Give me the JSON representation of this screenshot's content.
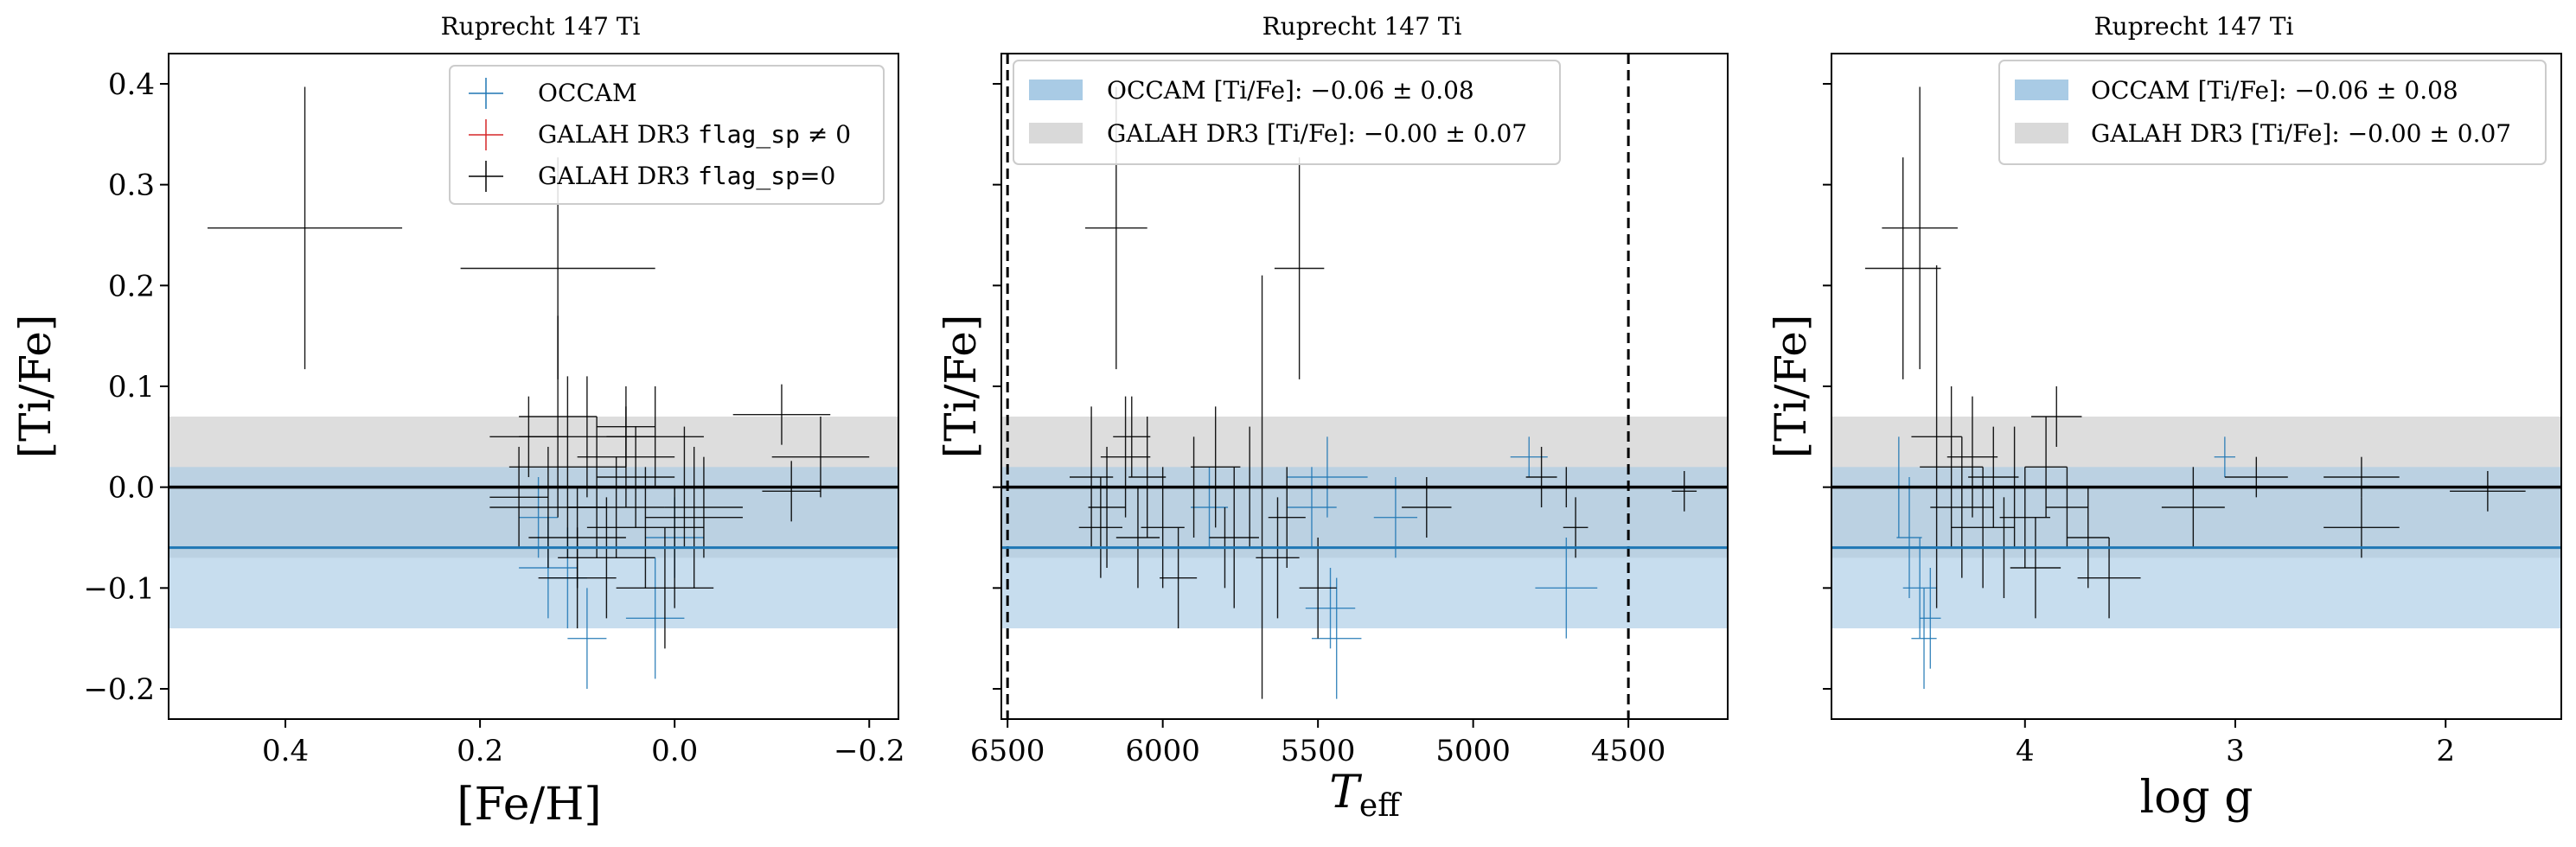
{
  "chart_data": [
    {
      "type": "scatter",
      "title": "Ruprecht 147 Ti",
      "xlabel": "[Fe/H]",
      "ylabel": "[Ti/Fe]",
      "xlim": [
        0.52,
        -0.23
      ],
      "ylim": [
        -0.23,
        0.43
      ],
      "xticks": [
        0.4,
        0.2,
        0.0,
        -0.2
      ],
      "xtick_labels": [
        "0.4",
        "0.2",
        "0.0",
        "−0.2"
      ],
      "yticks": [
        -0.2,
        -0.1,
        0.0,
        0.1,
        0.2,
        0.3,
        0.4
      ],
      "ytick_labels": [
        "−0.2",
        "−0.1",
        "0.0",
        "0.1",
        "0.2",
        "0.3",
        "0.4"
      ],
      "legend": {
        "placement": "top-right",
        "entries": [
          {
            "label": "OCCAM",
            "marker": "cross",
            "color": "#1f77b4"
          },
          {
            "label_prefix": "GALAH DR3 ",
            "label_code": "flag_sp",
            "label_suffix": " ≠ 0",
            "marker": "cross",
            "color": "#d62728"
          },
          {
            "label_prefix": "GALAH DR3 ",
            "label_code": "flag_sp",
            "label_suffix": "=0",
            "marker": "cross",
            "color": "#000000"
          }
        ]
      },
      "bands": [
        {
          "series": "GALAH DR3",
          "center": 0.0,
          "halfwidth": 0.07,
          "color": "#d9d9d9"
        },
        {
          "series": "OCCAM",
          "center": -0.06,
          "halfwidth": 0.08,
          "color": "#a9cbe5"
        }
      ],
      "series": [
        {
          "name": "OCCAM",
          "color": "#1f77b4",
          "points": [
            {
              "x": 0.14,
              "y": -0.03,
              "xerr": 0.02,
              "yerr": 0.04
            },
            {
              "x": 0.13,
              "y": -0.08,
              "xerr": 0.03,
              "yerr": 0.05
            },
            {
              "x": 0.11,
              "y": -0.09,
              "xerr": 0.02,
              "yerr": 0.05
            },
            {
              "x": 0.09,
              "y": -0.15,
              "xerr": 0.02,
              "yerr": 0.05
            },
            {
              "x": 0.02,
              "y": -0.13,
              "xerr": 0.03,
              "yerr": 0.06
            },
            {
              "x": 0.0,
              "y": -0.05,
              "xerr": 0.03,
              "yerr": 0.04
            }
          ]
        },
        {
          "name": "GALAH DR3 flag_sp=0",
          "color": "#000000",
          "points": [
            {
              "x": 0.38,
              "y": 0.257,
              "xerr": 0.1,
              "yerr": 0.14
            },
            {
              "x": 0.12,
              "y": 0.217,
              "xerr": 0.1,
              "yerr": 0.11
            },
            {
              "x": 0.12,
              "y": 0.07,
              "xerr": 0.04,
              "yerr": 0.1
            },
            {
              "x": 0.11,
              "y": 0.02,
              "xerr": 0.06,
              "yerr": 0.09
            },
            {
              "x": 0.09,
              "y": 0.05,
              "xerr": 0.07,
              "yerr": 0.06
            },
            {
              "x": 0.05,
              "y": 0.03,
              "xerr": 0.05,
              "yerr": 0.05
            },
            {
              "x": 0.15,
              "y": 0.05,
              "xerr": 0.04,
              "yerr": 0.04
            },
            {
              "x": 0.13,
              "y": -0.02,
              "xerr": 0.06,
              "yerr": 0.06
            },
            {
              "x": 0.1,
              "y": -0.05,
              "xerr": 0.05,
              "yerr": 0.05
            },
            {
              "x": 0.08,
              "y": 0.0,
              "xerr": 0.08,
              "yerr": 0.07
            },
            {
              "x": 0.06,
              "y": -0.02,
              "xerr": 0.05,
              "yerr": 0.05
            },
            {
              "x": 0.04,
              "y": 0.01,
              "xerr": 0.04,
              "yerr": 0.05
            },
            {
              "x": 0.03,
              "y": -0.04,
              "xerr": 0.06,
              "yerr": 0.06
            },
            {
              "x": 0.02,
              "y": 0.05,
              "xerr": 0.05,
              "yerr": 0.05
            },
            {
              "x": 0.0,
              "y": -0.06,
              "xerr": 0.06,
              "yerr": 0.06
            },
            {
              "x": -0.01,
              "y": 0.0,
              "xerr": 0.05,
              "yerr": 0.06
            },
            {
              "x": -0.02,
              "y": -0.03,
              "xerr": 0.05,
              "yerr": 0.07
            },
            {
              "x": 0.07,
              "y": -0.07,
              "xerr": 0.05,
              "yerr": 0.06
            },
            {
              "x": 0.1,
              "y": -0.09,
              "xerr": 0.04,
              "yerr": 0.05
            },
            {
              "x": 0.01,
              "y": -0.1,
              "xerr": 0.05,
              "yerr": 0.06
            },
            {
              "x": -0.03,
              "y": -0.02,
              "xerr": 0.04,
              "yerr": 0.05
            },
            {
              "x": 0.16,
              "y": -0.01,
              "xerr": 0.03,
              "yerr": 0.05
            },
            {
              "x": 0.05,
              "y": 0.06,
              "xerr": 0.03,
              "yerr": 0.04
            },
            {
              "x": -0.11,
              "y": 0.072,
              "xerr": 0.05,
              "yerr": 0.03
            },
            {
              "x": -0.15,
              "y": 0.03,
              "xerr": 0.05,
              "yerr": 0.04
            },
            {
              "x": -0.12,
              "y": -0.004,
              "xerr": 0.03,
              "yerr": 0.03
            }
          ]
        }
      ],
      "hlines": [
        {
          "y": 0.0,
          "color": "#000000"
        },
        {
          "y": -0.06,
          "color": "#1f77b4"
        }
      ]
    },
    {
      "type": "scatter",
      "title": "Ruprecht 147 Ti",
      "xlabel_main": "T",
      "xlabel_sub": "eff",
      "ylabel": "[Ti/Fe]",
      "xlim": [
        6520,
        4180
      ],
      "ylim": [
        -0.23,
        0.43
      ],
      "xticks": [
        6500,
        6000,
        5500,
        5000,
        4500
      ],
      "xtick_labels": [
        "6500",
        "6000",
        "5500",
        "5000",
        "4500"
      ],
      "yticks": [
        -0.2,
        -0.1,
        0.0,
        0.1,
        0.2,
        0.3,
        0.4
      ],
      "vlines": [
        {
          "x": 6500,
          "style": "dashed"
        },
        {
          "x": 4500,
          "style": "dashed"
        }
      ],
      "legend": {
        "placement": "top-left",
        "entries": [
          {
            "label_prefix": "OCCAM [Ti/Fe]: ",
            "label_value": "−0.06 ± 0.08",
            "color": "#a9cbe5"
          },
          {
            "label_prefix": "GALAH DR3 [Ti/Fe]: ",
            "label_value": "−0.00 ± 0.07",
            "color": "#d9d9d9"
          }
        ]
      },
      "bands": [
        {
          "series": "GALAH DR3",
          "center": 0.0,
          "halfwidth": 0.07,
          "color": "#d9d9d9"
        },
        {
          "series": "OCCAM",
          "center": -0.06,
          "halfwidth": 0.08,
          "color": "#a9cbe5"
        }
      ],
      "series": [
        {
          "name": "OCCAM",
          "color": "#1f77b4",
          "points": [
            {
              "x": 5850,
              "y": -0.02,
              "xerr": 60,
              "yerr": 0.04
            },
            {
              "x": 5520,
              "y": -0.02,
              "xerr": 80,
              "yerr": 0.04
            },
            {
              "x": 5460,
              "y": -0.12,
              "xerr": 80,
              "yerr": 0.04
            },
            {
              "x": 5440,
              "y": -0.15,
              "xerr": 80,
              "yerr": 0.06
            },
            {
              "x": 5470,
              "y": 0.01,
              "xerr": 130,
              "yerr": 0.04
            },
            {
              "x": 5250,
              "y": -0.03,
              "xerr": 70,
              "yerr": 0.04
            },
            {
              "x": 4820,
              "y": 0.03,
              "xerr": 60,
              "yerr": 0.02
            },
            {
              "x": 4700,
              "y": -0.1,
              "xerr": 100,
              "yerr": 0.05
            }
          ]
        },
        {
          "name": "GALAH DR3 flag_sp=0",
          "color": "#000000",
          "points": [
            {
              "x": 6150,
              "y": 0.257,
              "xerr": 100,
              "yerr": 0.14
            },
            {
              "x": 5560,
              "y": 0.217,
              "xerr": 80,
              "yerr": 0.11
            },
            {
              "x": 5680,
              "y": 0.0,
              "xerr": 60,
              "yerr": 0.21
            },
            {
              "x": 6230,
              "y": 0.01,
              "xerr": 70,
              "yerr": 0.07
            },
            {
              "x": 6180,
              "y": -0.02,
              "xerr": 60,
              "yerr": 0.06
            },
            {
              "x": 6120,
              "y": 0.03,
              "xerr": 80,
              "yerr": 0.06
            },
            {
              "x": 6080,
              "y": -0.05,
              "xerr": 70,
              "yerr": 0.05
            },
            {
              "x": 6050,
              "y": 0.01,
              "xerr": 60,
              "yerr": 0.06
            },
            {
              "x": 6000,
              "y": -0.04,
              "xerr": 70,
              "yerr": 0.06
            },
            {
              "x": 5950,
              "y": -0.09,
              "xerr": 60,
              "yerr": 0.05
            },
            {
              "x": 5900,
              "y": 0.0,
              "xerr": 60,
              "yerr": 0.05
            },
            {
              "x": 5830,
              "y": 0.02,
              "xerr": 80,
              "yerr": 0.06
            },
            {
              "x": 5770,
              "y": -0.05,
              "xerr": 80,
              "yerr": 0.07
            },
            {
              "x": 5720,
              "y": 0.0,
              "xerr": 70,
              "yerr": 0.06
            },
            {
              "x": 5630,
              "y": -0.07,
              "xerr": 70,
              "yerr": 0.06
            },
            {
              "x": 5600,
              "y": -0.03,
              "xerr": 60,
              "yerr": 0.05
            },
            {
              "x": 5500,
              "y": -0.1,
              "xerr": 60,
              "yerr": 0.05
            },
            {
              "x": 6200,
              "y": -0.04,
              "xerr": 70,
              "yerr": 0.05
            },
            {
              "x": 6100,
              "y": 0.05,
              "xerr": 60,
              "yerr": 0.04
            },
            {
              "x": 5800,
              "y": -0.06,
              "xerr": 70,
              "yerr": 0.04
            },
            {
              "x": 5150,
              "y": -0.02,
              "xerr": 80,
              "yerr": 0.03
            },
            {
              "x": 4780,
              "y": 0.01,
              "xerr": 50,
              "yerr": 0.03
            },
            {
              "x": 4700,
              "y": 0.0,
              "xerr": 50,
              "yerr": 0.02
            },
            {
              "x": 4670,
              "y": -0.04,
              "xerr": 40,
              "yerr": 0.03
            },
            {
              "x": 4320,
              "y": -0.004,
              "xerr": 40,
              "yerr": 0.02
            }
          ]
        }
      ],
      "hlines": [
        {
          "y": 0.0,
          "color": "#000000"
        },
        {
          "y": -0.06,
          "color": "#1f77b4"
        }
      ]
    },
    {
      "type": "scatter",
      "title": "Ruprecht 147 Ti",
      "xlabel": "log g",
      "ylabel": "[Ti/Fe]",
      "xlim": [
        4.92,
        1.45
      ],
      "ylim": [
        -0.23,
        0.43
      ],
      "xticks": [
        4,
        3,
        2
      ],
      "xtick_labels": [
        "4",
        "3",
        "2"
      ],
      "yticks": [
        -0.2,
        -0.1,
        0.0,
        0.1,
        0.2,
        0.3,
        0.4
      ],
      "legend": {
        "placement": "top-right",
        "entries": [
          {
            "label_prefix": "OCCAM [Ti/Fe]: ",
            "label_value": "−0.06 ± 0.08",
            "color": "#a9cbe5"
          },
          {
            "label_prefix": "GALAH DR3 [Ti/Fe]: ",
            "label_value": "−0.00 ± 0.07",
            "color": "#d9d9d9"
          }
        ]
      },
      "bands": [
        {
          "series": "GALAH DR3",
          "center": 0.0,
          "halfwidth": 0.07,
          "color": "#d9d9d9"
        },
        {
          "series": "OCCAM",
          "center": -0.06,
          "halfwidth": 0.08,
          "color": "#a9cbe5"
        }
      ],
      "series": [
        {
          "name": "OCCAM",
          "color": "#1f77b4",
          "points": [
            {
              "x": 4.6,
              "y": 0.0,
              "xerr": 0.05,
              "yerr": 0.05
            },
            {
              "x": 4.55,
              "y": -0.05,
              "xerr": 0.06,
              "yerr": 0.06
            },
            {
              "x": 4.5,
              "y": -0.1,
              "xerr": 0.08,
              "yerr": 0.05
            },
            {
              "x": 4.48,
              "y": -0.15,
              "xerr": 0.06,
              "yerr": 0.05
            },
            {
              "x": 4.45,
              "y": -0.13,
              "xerr": 0.05,
              "yerr": 0.05
            },
            {
              "x": 3.05,
              "y": 0.03,
              "xerr": 0.05,
              "yerr": 0.02
            }
          ]
        },
        {
          "name": "GALAH DR3 flag_sp=0",
          "color": "#000000",
          "points": [
            {
              "x": 4.5,
              "y": 0.257,
              "xerr": 0.18,
              "yerr": 0.14
            },
            {
              "x": 4.58,
              "y": 0.217,
              "xerr": 0.18,
              "yerr": 0.11
            },
            {
              "x": 4.42,
              "y": 0.05,
              "xerr": 0.12,
              "yerr": 0.17
            },
            {
              "x": 4.35,
              "y": 0.02,
              "xerr": 0.15,
              "yerr": 0.08
            },
            {
              "x": 4.3,
              "y": -0.02,
              "xerr": 0.15,
              "yerr": 0.07
            },
            {
              "x": 4.25,
              "y": 0.03,
              "xerr": 0.12,
              "yerr": 0.06
            },
            {
              "x": 4.2,
              "y": -0.04,
              "xerr": 0.15,
              "yerr": 0.06
            },
            {
              "x": 4.15,
              "y": 0.01,
              "xerr": 0.12,
              "yerr": 0.05
            },
            {
              "x": 4.1,
              "y": -0.06,
              "xerr": 0.15,
              "yerr": 0.05
            },
            {
              "x": 4.05,
              "y": 0.0,
              "xerr": 0.12,
              "yerr": 0.06
            },
            {
              "x": 4.0,
              "y": -0.03,
              "xerr": 0.12,
              "yerr": 0.05
            },
            {
              "x": 3.95,
              "y": -0.08,
              "xerr": 0.12,
              "yerr": 0.05
            },
            {
              "x": 3.9,
              "y": 0.02,
              "xerr": 0.1,
              "yerr": 0.05
            },
            {
              "x": 3.85,
              "y": 0.07,
              "xerr": 0.12,
              "yerr": 0.03
            },
            {
              "x": 3.8,
              "y": -0.02,
              "xerr": 0.1,
              "yerr": 0.04
            },
            {
              "x": 3.7,
              "y": -0.05,
              "xerr": 0.1,
              "yerr": 0.05
            },
            {
              "x": 3.6,
              "y": -0.09,
              "xerr": 0.15,
              "yerr": 0.04
            },
            {
              "x": 3.2,
              "y": -0.02,
              "xerr": 0.15,
              "yerr": 0.04
            },
            {
              "x": 2.9,
              "y": 0.01,
              "xerr": 0.15,
              "yerr": 0.02
            },
            {
              "x": 2.4,
              "y": 0.01,
              "xerr": 0.18,
              "yerr": 0.02
            },
            {
              "x": 2.4,
              "y": -0.04,
              "xerr": 0.18,
              "yerr": 0.03
            },
            {
              "x": 1.8,
              "y": -0.004,
              "xerr": 0.18,
              "yerr": 0.02
            }
          ]
        }
      ],
      "hlines": [
        {
          "y": 0.0,
          "color": "#000000"
        },
        {
          "y": -0.06,
          "color": "#1f77b4"
        }
      ]
    }
  ]
}
